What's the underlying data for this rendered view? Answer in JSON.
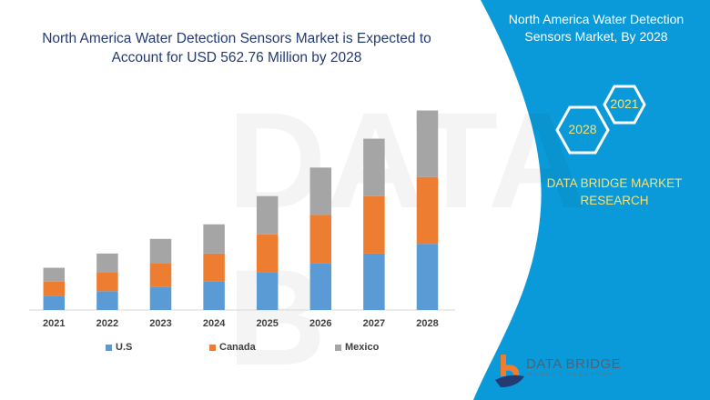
{
  "header": {
    "title": "North America Water Detection Sensors Market is Expected to Account for USD 562.76  Million by 2028"
  },
  "side_panel": {
    "title": "North America Water Detection Sensors Market, By 2028",
    "hex_years": [
      "2028",
      "2021"
    ],
    "brand_text": "DATA BRIDGE MARKET RESEARCH",
    "logo_text": "DATA BRIDGE",
    "logo_subtext": "MARKET RESEARCH",
    "color": "#0a9ad9"
  },
  "chart_data": {
    "type": "bar",
    "stacked": true,
    "title": "North America Water Detection Sensors Market is Expected to Account for USD 562.76  Million by 2028",
    "xlabel": "",
    "ylabel": "",
    "categories": [
      "2021",
      "2022",
      "2023",
      "2024",
      "2025",
      "2026",
      "2027",
      "2028"
    ],
    "series": [
      {
        "name": "U.S",
        "color": "#5b9bd5",
        "values": [
          38.6,
          53.1,
          66.0,
          79.7,
          106.2,
          132.8,
          159.3,
          186.7
        ]
      },
      {
        "name": "Canada",
        "color": "#ed7d31",
        "values": [
          41.1,
          53.1,
          66.8,
          79.7,
          107.0,
          135.3,
          161.9,
          188.4
        ]
      },
      {
        "name": "Mexico",
        "color": "#a5a5a5",
        "values": [
          39.4,
          53.1,
          67.7,
          82.2,
          108.0,
          133.6,
          161.9,
          187.6
        ]
      }
    ],
    "ylim": [
      0,
      562.76
    ],
    "grid": false,
    "legend": "bottom"
  }
}
